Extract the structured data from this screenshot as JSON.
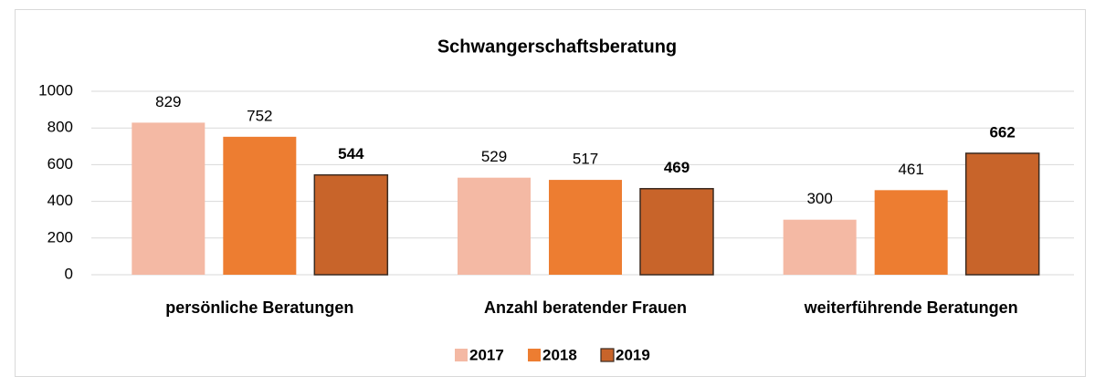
{
  "chart_data": {
    "type": "bar",
    "title": "Schwangerschaftsberatung",
    "categories": [
      "persönliche Beratungen",
      "Anzahl beratender Frauen",
      "weiterführende Beratungen"
    ],
    "series": [
      {
        "name": "2017",
        "color": "#f4b9a4",
        "values": [
          829,
          529,
          300
        ]
      },
      {
        "name": "2018",
        "color": "#ed7d31",
        "values": [
          752,
          517,
          461
        ]
      },
      {
        "name": "2019",
        "color": "#c8642a",
        "values": [
          544,
          469,
          662
        ]
      }
    ],
    "ylim": [
      0,
      1000
    ],
    "yticks": [
      0,
      200,
      400,
      600,
      800,
      1000
    ],
    "grid": true,
    "legend": "bottom"
  }
}
